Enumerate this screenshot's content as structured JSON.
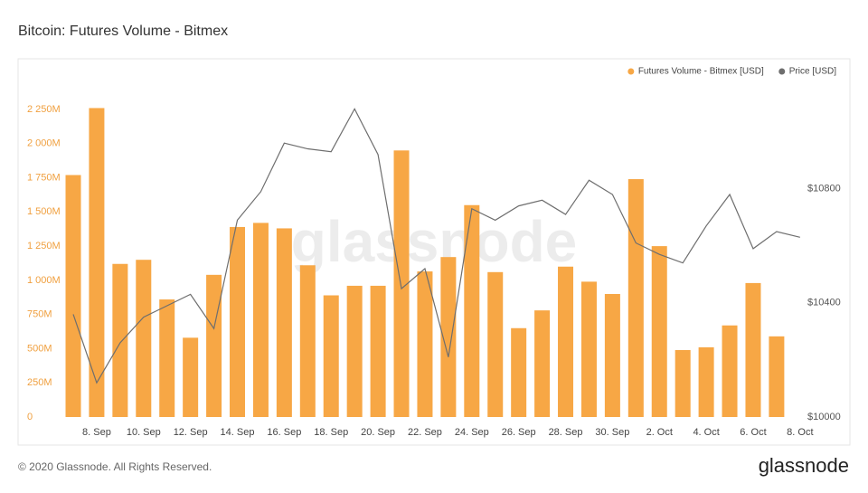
{
  "title": "Bitcoin: Futures Volume - Bitmex",
  "footer": "© 2020 Glassnode. All Rights Reserved.",
  "logo": "glassnode",
  "watermark": "glassnode",
  "chart_data": {
    "type": "bar",
    "categories": [
      null,
      "8. Sep",
      null,
      "10. Sep",
      null,
      "12. Sep",
      null,
      "14. Sep",
      null,
      "16. Sep",
      null,
      "18. Sep",
      null,
      "20. Sep",
      null,
      "22. Sep",
      null,
      "24. Sep",
      null,
      "26. Sep",
      null,
      "28. Sep",
      null,
      "30. Sep",
      null,
      "2. Oct",
      null,
      "4. Oct",
      null,
      "6. Oct",
      null,
      "8. Oct"
    ],
    "series": [
      {
        "name": "Futures Volume - Bitmex [USD]",
        "type": "bar",
        "color": "#f7a745",
        "values": [
          1770,
          2260,
          1120,
          1150,
          860,
          580,
          1040,
          1390,
          1420,
          1380,
          1110,
          890,
          960,
          960,
          1950,
          1065,
          1170,
          1550,
          1060,
          650,
          780,
          1100,
          990,
          900,
          1740,
          1250,
          490,
          510,
          670,
          980,
          590,
          null
        ]
      },
      {
        "name": "Price [USD]",
        "type": "line",
        "axis": "y2",
        "color": "#6e6e6e",
        "values": [
          10360,
          10120,
          10260,
          10350,
          10390,
          10430,
          10310,
          10690,
          10790,
          10960,
          10940,
          10930,
          11080,
          10920,
          10450,
          10520,
          10210,
          10730,
          10690,
          10740,
          10760,
          10710,
          10830,
          10780,
          10610,
          10570,
          10540,
          10670,
          10780,
          10590,
          10650,
          10630
        ]
      }
    ],
    "ylim": [
      0,
      2400
    ],
    "yticks": [
      0,
      {
        "value": 250,
        "label": "250M"
      },
      {
        "value": 500,
        "label": "500M"
      },
      {
        "value": 750,
        "label": "750M"
      },
      {
        "value": 1000,
        "label": "1 000M"
      },
      {
        "value": 1250,
        "label": "1 250M"
      },
      {
        "value": 1500,
        "label": "1 500M"
      },
      {
        "value": 1750,
        "label": "1 750M"
      },
      {
        "value": 2000,
        "label": "2 000M"
      },
      {
        "value": 2250,
        "label": "2 250M"
      }
    ],
    "y2lim": [
      10000,
      11150
    ],
    "y2ticks": [
      {
        "value": 10000,
        "label": "$10000"
      },
      {
        "value": 10400,
        "label": "$10400"
      },
      {
        "value": 10800,
        "label": "$10800"
      }
    ],
    "grid": false,
    "legend": "top-right"
  }
}
